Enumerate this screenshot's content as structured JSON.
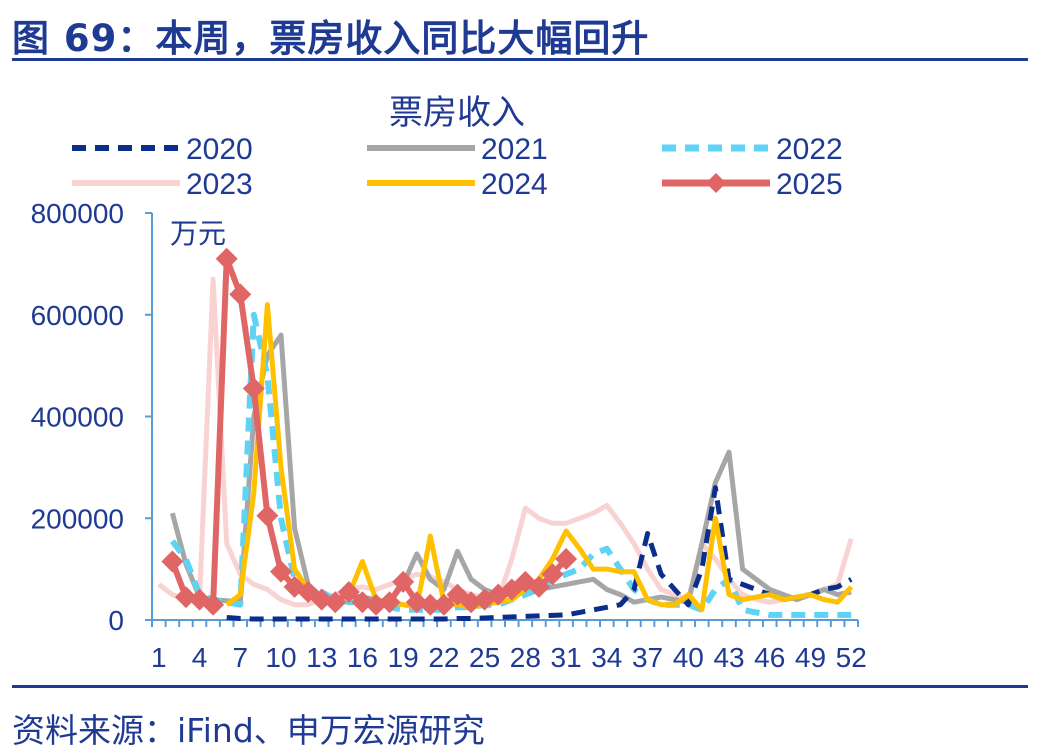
{
  "figure": {
    "title": "图 69：本周，票房收入同比大幅回升",
    "source": "资料来源：iFind、申万宏源研究"
  },
  "colors": {
    "header": "#1f3a93",
    "axis": "#5b9bd5",
    "s2020": "#0b2d8c",
    "s2021": "#a6a6a6",
    "s2022": "#5fd3f3",
    "s2023": "#f8d3d2",
    "s2024": "#ffc000",
    "s2025": "#e06666"
  },
  "chart_data": {
    "type": "line",
    "title": "票房收入",
    "ylabel": "万元",
    "xlabel": "",
    "ylim": [
      0,
      800000
    ],
    "yticks": [
      "0",
      "200000",
      "400000",
      "600000",
      "800000"
    ],
    "xticks": [
      "1",
      "4",
      "7",
      "10",
      "13",
      "16",
      "19",
      "22",
      "25",
      "28",
      "31",
      "34",
      "37",
      "40",
      "43",
      "46",
      "49",
      "52"
    ],
    "legend_placement": "top",
    "x": [
      1,
      2,
      3,
      4,
      5,
      6,
      7,
      8,
      9,
      10,
      11,
      12,
      13,
      14,
      15,
      16,
      17,
      18,
      19,
      20,
      21,
      22,
      23,
      24,
      25,
      26,
      27,
      28,
      29,
      30,
      31,
      32,
      33,
      34,
      35,
      36,
      37,
      38,
      39,
      40,
      41,
      42,
      43,
      44,
      45,
      46,
      47,
      48,
      49,
      50,
      51,
      52
    ],
    "series": [
      {
        "name": "2020",
        "values": [
          null,
          null,
          null,
          null,
          null,
          5000,
          3000,
          2000,
          2000,
          2000,
          2000,
          2000,
          2000,
          2000,
          2000,
          2000,
          2000,
          2000,
          2000,
          2000,
          2000,
          2000,
          3000,
          3000,
          4000,
          5000,
          6000,
          7000,
          8000,
          9000,
          10000,
          15000,
          20000,
          25000,
          30000,
          60000,
          170000,
          90000,
          60000,
          30000,
          100000,
          260000,
          80000,
          70000,
          60000,
          50000,
          40000,
          45000,
          50000,
          60000,
          65000,
          80000
        ]
      },
      {
        "name": "2021",
        "values": [
          null,
          210000,
          110000,
          45000,
          40000,
          38000,
          35000,
          400000,
          520000,
          560000,
          180000,
          70000,
          45000,
          40000,
          50000,
          45000,
          40000,
          35000,
          70000,
          130000,
          80000,
          60000,
          135000,
          80000,
          60000,
          50000,
          50000,
          55000,
          60000,
          65000,
          70000,
          75000,
          80000,
          60000,
          50000,
          35000,
          40000,
          45000,
          40000,
          35000,
          150000,
          270000,
          330000,
          100000,
          80000,
          60000,
          50000,
          40000,
          50000,
          60000,
          50000,
          55000
        ]
      },
      {
        "name": "2022",
        "values": [
          null,
          155000,
          120000,
          50000,
          40000,
          35000,
          30000,
          600000,
          480000,
          200000,
          80000,
          60000,
          55000,
          40000,
          35000,
          35000,
          30000,
          25000,
          20000,
          20000,
          20000,
          20000,
          25000,
          25000,
          30000,
          30000,
          40000,
          50000,
          60000,
          80000,
          90000,
          100000,
          130000,
          140000,
          100000,
          60000,
          40000,
          30000,
          30000,
          30000,
          20000,
          60000,
          80000,
          20000,
          15000,
          10000,
          10000,
          10000,
          10000,
          10000,
          10000,
          10000
        ]
      },
      {
        "name": "2023",
        "values": [
          70000,
          50000,
          40000,
          40000,
          670000,
          150000,
          90000,
          70000,
          60000,
          40000,
          30000,
          30000,
          40000,
          50000,
          60000,
          65000,
          60000,
          70000,
          80000,
          90000,
          85000,
          75000,
          60000,
          50000,
          45000,
          40000,
          120000,
          220000,
          200000,
          190000,
          190000,
          200000,
          210000,
          225000,
          190000,
          150000,
          100000,
          60000,
          50000,
          40000,
          150000,
          120000,
          80000,
          50000,
          40000,
          35000,
          40000,
          45000,
          50000,
          60000,
          70000,
          160000
        ]
      },
      {
        "name": "2024",
        "values": [
          null,
          null,
          null,
          null,
          null,
          30000,
          50000,
          250000,
          620000,
          300000,
          100000,
          60000,
          40000,
          30000,
          50000,
          115000,
          40000,
          35000,
          30000,
          25000,
          165000,
          35000,
          30000,
          25000,
          30000,
          35000,
          40000,
          60000,
          80000,
          120000,
          175000,
          140000,
          100000,
          100000,
          95000,
          95000,
          40000,
          30000,
          30000,
          50000,
          20000,
          200000,
          50000,
          40000,
          45000,
          50000,
          40000,
          45000,
          50000,
          40000,
          35000,
          65000
        ]
      },
      {
        "name": "2025",
        "values": [
          null,
          115000,
          45000,
          40000,
          30000,
          710000,
          640000,
          455000,
          205000,
          95000,
          65000,
          55000,
          40000,
          35000,
          55000,
          35000,
          30000,
          35000,
          75000,
          35000,
          30000,
          30000,
          50000,
          35000,
          40000,
          50000,
          60000,
          75000,
          65000,
          90000,
          120000,
          null,
          null,
          null,
          null,
          null,
          null,
          null,
          null,
          null,
          null,
          null,
          null,
          null,
          null,
          null,
          null,
          null,
          null,
          null,
          null,
          null
        ]
      }
    ]
  }
}
